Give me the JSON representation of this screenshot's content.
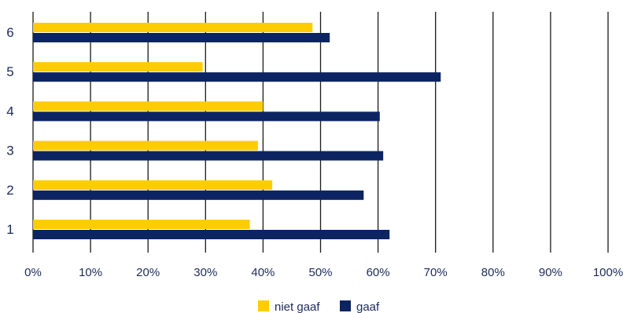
{
  "chart_data": {
    "type": "bar",
    "orientation": "horizontal",
    "categories": [
      "1",
      "2",
      "3",
      "4",
      "5",
      "6"
    ],
    "series": [
      {
        "name": "niet gaaf",
        "color": "#ffcc00",
        "values": [
          37.7,
          41.6,
          39.1,
          40.0,
          29.5,
          48.6
        ]
      },
      {
        "name": "gaaf",
        "color": "#0c2461",
        "values": [
          62.0,
          57.5,
          60.9,
          60.3,
          70.9,
          51.6
        ]
      }
    ],
    "xlim": [
      0,
      100
    ],
    "x_ticks": [
      "0%",
      "10%",
      "20%",
      "30%",
      "40%",
      "50%",
      "60%",
      "70%",
      "80%",
      "90%",
      "100%"
    ],
    "grid": true,
    "legend_position": "bottom-center"
  }
}
